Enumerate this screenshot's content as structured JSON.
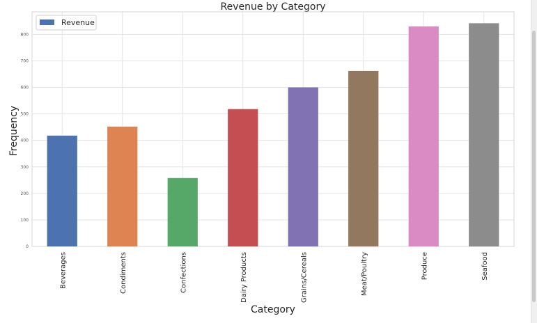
{
  "chart_data": {
    "type": "bar",
    "title": "Revenue by Category",
    "xlabel": "Category",
    "ylabel": "Frequency",
    "categories": [
      "Beverages",
      "Condiments",
      "Confections",
      "Dairy Products",
      "Grains/Cereals",
      "Meat/Poultry",
      "Produce",
      "Seafood"
    ],
    "series": [
      {
        "name": "Revenue",
        "values": [
          418,
          452,
          258,
          518,
          600,
          662,
          830,
          842
        ]
      }
    ],
    "bar_colors": [
      "#4c72b0",
      "#dd8452",
      "#55a868",
      "#c44e52",
      "#8172b3",
      "#937860",
      "#da8bc3",
      "#8c8c8c"
    ],
    "legend_color": "#4c72b0",
    "ylim": [
      0,
      885
    ],
    "yticks": [
      "0",
      "100",
      "200",
      "300",
      "400",
      "500",
      "600",
      "700",
      "800"
    ],
    "grid": true,
    "legend_position": "top-left"
  }
}
